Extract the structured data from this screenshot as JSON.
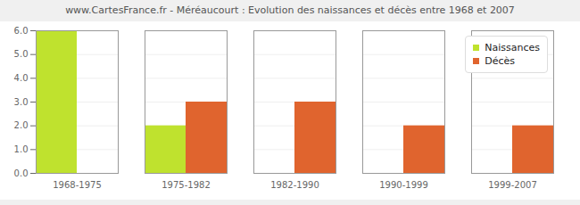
{
  "chart_data": {
    "type": "bar",
    "title": "www.CartesFrance.fr - Méréaucourt : Evolution des naissances et décès entre 1968 et 2007",
    "categories": [
      "1968-1975",
      "1975-1982",
      "1982-1990",
      "1990-1999",
      "1999-2007"
    ],
    "series": [
      {
        "name": "Naissances",
        "color": "#bfe22e",
        "values": [
          6,
          2,
          0,
          0,
          0
        ]
      },
      {
        "name": "Décès",
        "color": "#e0642e",
        "values": [
          0,
          3,
          3,
          2,
          2
        ]
      }
    ],
    "ylim": [
      0,
      6
    ],
    "yticks": [
      0,
      1,
      2,
      3,
      4,
      5,
      6
    ],
    "grid": true,
    "legend": "top-right"
  }
}
